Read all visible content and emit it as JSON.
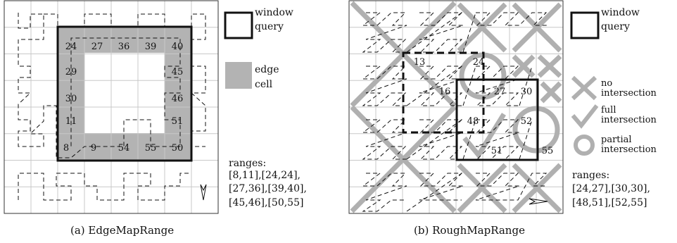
{
  "panel_a": {
    "caption": "(a) EdgeMapRange",
    "cell_labels": [
      "24",
      "27",
      "36",
      "39",
      "40",
      "29",
      "45",
      "30",
      "46",
      "11",
      "51",
      "8",
      "9",
      "54",
      "55",
      "50"
    ],
    "legend": {
      "window_query": [
        "window",
        "query"
      ],
      "edge_cell": [
        "edge",
        "cell"
      ]
    },
    "ranges_title": "ranges:",
    "ranges": [
      "[8,11],[24,24],",
      "[27,36],[39,40],",
      "[45,46],[50,55]"
    ]
  },
  "panel_b": {
    "caption": "(b) RoughMapRange",
    "cell_labels": [
      "13",
      "24",
      "16",
      "27",
      "30",
      "48",
      "52",
      "51",
      "55"
    ],
    "legend": {
      "window_query": [
        "window",
        "query"
      ],
      "no_intersection": [
        "no",
        "intersection"
      ],
      "full_intersection": [
        "full",
        "intersection"
      ],
      "partial_intersection": [
        "partial",
        "intersection"
      ]
    },
    "ranges_title": "ranges:",
    "ranges": [
      "[24,27],[30,30],",
      "[48,51],[52,55]"
    ]
  },
  "colors": {
    "edge_cell": "#b3b3b3",
    "grid_line": "#c8c8c8",
    "mark_gray": "#b0b0b0",
    "window": "#111111"
  }
}
